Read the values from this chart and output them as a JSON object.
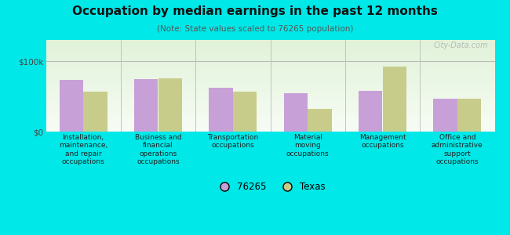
{
  "title": "Occupation by median earnings in the past 12 months",
  "subtitle": "(Note: State values scaled to 76265 population)",
  "categories": [
    "Installation,\nmaintenance,\nand repair\noccupations",
    "Business and\nfinancial\noperations\noccupations",
    "Transportation\noccupations",
    "Material\nmoving\noccupations",
    "Management\noccupations",
    "Office and\nadministrative\nsupport\noccupations"
  ],
  "values_76265": [
    73000,
    74000,
    62000,
    55000,
    58000,
    47000
  ],
  "values_texas": [
    57000,
    76000,
    57000,
    32000,
    92000,
    47000
  ],
  "color_76265": "#c8a0d8",
  "color_texas": "#c8cc8a",
  "bg_color": "#00e8e8",
  "bar_width": 0.32,
  "ylim": [
    0,
    130000
  ],
  "yticks": [
    0,
    100000
  ],
  "ytick_labels": [
    "$0",
    "$100k"
  ],
  "legend_76265": "76265",
  "legend_texas": "Texas",
  "watermark": "City-Data.com"
}
